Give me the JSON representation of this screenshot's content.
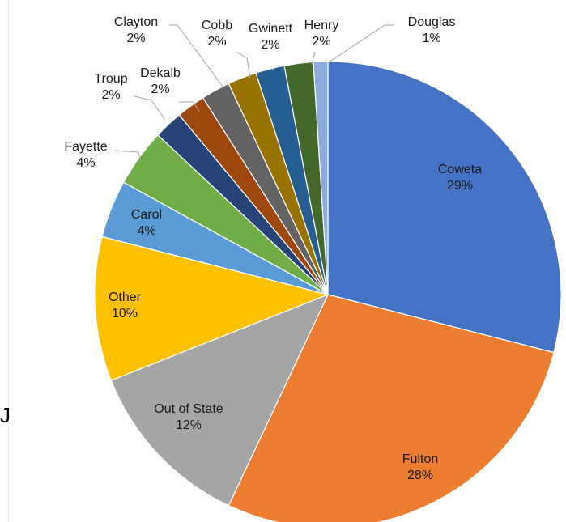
{
  "chart_data": {
    "type": "pie",
    "title": "",
    "slices": [
      {
        "name": "Coweta",
        "value": 29,
        "label": "29%",
        "color": "#4472C4"
      },
      {
        "name": "Fulton",
        "value": 28,
        "label": "28%",
        "color": "#ED7D31"
      },
      {
        "name": "Out of State",
        "value": 12,
        "label": "12%",
        "color": "#A5A5A5"
      },
      {
        "name": "Other",
        "value": 10,
        "label": "10%",
        "color": "#FFC000"
      },
      {
        "name": "Carol",
        "value": 4,
        "label": "4%",
        "color": "#5B9BD5"
      },
      {
        "name": "Fayette",
        "value": 4,
        "label": "4%",
        "color": "#70AD47"
      },
      {
        "name": "Troup",
        "value": 2,
        "label": "2%",
        "color": "#264478"
      },
      {
        "name": "Dekalb",
        "value": 2,
        "label": "2%",
        "color": "#9E480E"
      },
      {
        "name": "Clayton",
        "value": 2,
        "label": "2%",
        "color": "#636363"
      },
      {
        "name": "Cobb",
        "value": 2,
        "label": "2%",
        "color": "#997300"
      },
      {
        "name": "Gwinett",
        "value": 2,
        "label": "2%",
        "color": "#255E91"
      },
      {
        "name": "Henry",
        "value": 2,
        "label": "2%",
        "color": "#43682B"
      },
      {
        "name": "Douglas",
        "value": 1,
        "label": "1%",
        "color": "#8FAADC"
      }
    ],
    "legend": "none",
    "labels": "category-and-percent"
  },
  "edge_glyph": "J"
}
